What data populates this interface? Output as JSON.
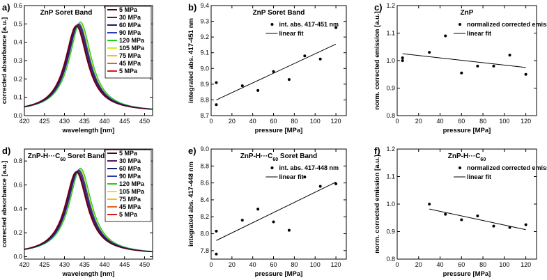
{
  "chart_data": [
    {
      "id": "a",
      "letter": "a)",
      "type": "line",
      "title": "ZnP Soret Band",
      "xlabel": "wavelength [nm]",
      "ylabel": "corrected absorbance [a.u.]",
      "xlim": [
        420,
        452
      ],
      "ylim": [
        0,
        0.6
      ],
      "xticks": [
        420,
        425,
        430,
        435,
        440,
        445,
        450
      ],
      "yticks": [
        0.0,
        0.1,
        0.2,
        0.3,
        0.4,
        0.5,
        0.6
      ],
      "ytick_labels": [
        "0.0",
        "0.1",
        "0.2",
        "0.3",
        "0.4",
        "0.5",
        "0.6"
      ],
      "curve": {
        "baseline": 0.02,
        "width": 3.6,
        "order": "red-first"
      },
      "series": [
        {
          "name": "5 MPa",
          "color": "#4a0024",
          "peak_x": 433.0,
          "peak_y": 0.49
        },
        {
          "name": "30 MPa",
          "color": "#5a1458",
          "peak_x": 433.2,
          "peak_y": 0.492
        },
        {
          "name": "60 MPa",
          "color": "#1a1a6e",
          "peak_x": 433.4,
          "peak_y": 0.496
        },
        {
          "name": "90 MPa",
          "color": "#2a3ab0",
          "peak_x": 433.6,
          "peak_y": 0.5
        },
        {
          "name": "120 MPa",
          "color": "#1fcc1f",
          "peak_x": 434.0,
          "peak_y": 0.51
        },
        {
          "name": "105 MPa",
          "color": "#d6e82a",
          "peak_x": 433.8,
          "peak_y": 0.505
        },
        {
          "name": "75 MPa",
          "color": "#f0c020",
          "peak_x": 433.4,
          "peak_y": 0.5
        },
        {
          "name": "45 MPa",
          "color": "#e86020",
          "peak_x": 433.1,
          "peak_y": 0.495
        },
        {
          "name": "5 MPa",
          "color": "#d41818",
          "peak_x": 432.9,
          "peak_y": 0.49
        }
      ]
    },
    {
      "id": "b",
      "letter": "b)",
      "type": "scatter",
      "title": "ZnP Soret Band",
      "xlabel": "pressure [MPa]",
      "ylabel": "integrated abs. 417-451 nm",
      "xlim": [
        0,
        130
      ],
      "ylim": [
        8.7,
        9.4
      ],
      "xticks": [
        0,
        20,
        40,
        60,
        80,
        100,
        120
      ],
      "yticks": [
        8.7,
        8.8,
        8.9,
        9.0,
        9.1,
        9.2,
        9.3,
        9.4
      ],
      "ytick_labels": [
        "8.7",
        "8.8",
        "8.9",
        "9.0",
        "9.1",
        "9.2",
        "9.3",
        "9.4"
      ],
      "legend": {
        "points": "int. abs. 417-451 nm",
        "fit": "linear fit",
        "position": "top-right"
      },
      "points": [
        [
          5,
          8.77
        ],
        [
          5,
          8.91
        ],
        [
          30,
          8.89
        ],
        [
          45,
          8.86
        ],
        [
          60,
          8.98
        ],
        [
          75,
          8.93
        ],
        [
          90,
          9.08
        ],
        [
          105,
          9.06
        ],
        [
          120,
          9.26
        ]
      ],
      "fit": [
        [
          5,
          8.8
        ],
        [
          120,
          9.155
        ]
      ]
    },
    {
      "id": "c",
      "letter": "c)",
      "type": "scatter",
      "title": "ZnP",
      "xlabel": "pressure [MPa]",
      "ylabel": "norm. corrected emission [a.u.]",
      "xlim": [
        0,
        130
      ],
      "ylim": [
        0.8,
        1.2
      ],
      "xticks": [
        0,
        20,
        40,
        60,
        80,
        100,
        120
      ],
      "yticks": [
        0.8,
        0.9,
        1.0,
        1.1,
        1.2
      ],
      "ytick_labels": [
        "0.8",
        "0.9",
        "1.0",
        "1.1",
        "1.2"
      ],
      "legend": {
        "points": "normalized corrected emission",
        "fit": "linear fit",
        "position": "top-right"
      },
      "points": [
        [
          5,
          1.0
        ],
        [
          5,
          1.01
        ],
        [
          30,
          1.03
        ],
        [
          45,
          1.09
        ],
        [
          60,
          0.955
        ],
        [
          75,
          0.98
        ],
        [
          90,
          0.98
        ],
        [
          105,
          1.02
        ],
        [
          120,
          0.95
        ]
      ],
      "fit": [
        [
          5,
          1.025
        ],
        [
          120,
          0.975
        ]
      ]
    },
    {
      "id": "d",
      "letter": "d)",
      "type": "line",
      "title": "ZnP-H···C",
      "title_sub": "60",
      "title_suffix": " Soret Band",
      "xlabel": "wavelength [nm]",
      "ylabel": "corrected absorbance [a.u.]",
      "xlim": [
        420,
        452
      ],
      "ylim": [
        -0.02,
        0.9
      ],
      "xticks": [
        420,
        425,
        430,
        435,
        440,
        445,
        450
      ],
      "yticks": [
        0.0,
        0.2,
        0.4,
        0.6,
        0.8
      ],
      "ytick_labels": [
        "0.0",
        "0.2",
        "0.4",
        "0.6",
        "0.8"
      ],
      "curve": {
        "baseline": 0.02,
        "width": 3.6,
        "order": "red-first"
      },
      "series": [
        {
          "name": "5 MPa",
          "color": "#4a0024",
          "peak_x": 433.0,
          "peak_y": 0.71
        },
        {
          "name": "30 MPa",
          "color": "#5a1458",
          "peak_x": 433.2,
          "peak_y": 0.712
        },
        {
          "name": "60 MPa",
          "color": "#1a1a6e",
          "peak_x": 433.4,
          "peak_y": 0.718
        },
        {
          "name": "90 MPa",
          "color": "#2a3ab0",
          "peak_x": 433.6,
          "peak_y": 0.725
        },
        {
          "name": "120 MPa",
          "color": "#1fcc1f",
          "peak_x": 434.0,
          "peak_y": 0.74
        },
        {
          "name": "105 MPa",
          "color": "#d6e82a",
          "peak_x": 433.8,
          "peak_y": 0.732
        },
        {
          "name": "75 MPa",
          "color": "#f0c020",
          "peak_x": 433.4,
          "peak_y": 0.722
        },
        {
          "name": "45 MPa",
          "color": "#e86020",
          "peak_x": 433.1,
          "peak_y": 0.715
        },
        {
          "name": "5 MPa",
          "color": "#d41818",
          "peak_x": 432.9,
          "peak_y": 0.71
        }
      ]
    },
    {
      "id": "e",
      "letter": "e)",
      "type": "scatter",
      "title": "ZnP-H···C",
      "title_sub": "60",
      "title_suffix": " Soret Band",
      "xlabel": "pressure [MPa]",
      "ylabel": "integrated abs. 417-448 nm",
      "xlim": [
        0,
        130
      ],
      "ylim": [
        7.7,
        9.0
      ],
      "xticks": [
        0,
        20,
        40,
        60,
        80,
        100,
        120
      ],
      "yticks": [
        7.8,
        8.0,
        8.2,
        8.4,
        8.6,
        8.8,
        9.0
      ],
      "ytick_labels": [
        "7.8",
        "8.0",
        "8.2",
        "8.4",
        "8.6",
        "8.8",
        "9.0"
      ],
      "legend": {
        "points": "int. abs. 417-448 nm",
        "fit": "linear fit",
        "position": "top-right"
      },
      "points": [
        [
          5,
          7.76
        ],
        [
          5,
          8.03
        ],
        [
          30,
          8.16
        ],
        [
          45,
          8.29
        ],
        [
          60,
          8.14
        ],
        [
          75,
          8.04
        ],
        [
          90,
          8.67
        ],
        [
          105,
          8.56
        ],
        [
          120,
          8.59
        ]
      ],
      "fit": [
        [
          5,
          7.92
        ],
        [
          120,
          8.61
        ]
      ]
    },
    {
      "id": "f",
      "letter": "f)",
      "type": "scatter",
      "title": "ZnP-H···C",
      "title_sub": "60",
      "title_suffix": "",
      "xlabel": "pressure [MPa]",
      "ylabel": "norm. corrected emission [a.u.]",
      "xlim": [
        0,
        130
      ],
      "ylim": [
        0.8,
        1.2
      ],
      "xticks": [
        0,
        20,
        40,
        60,
        80,
        100,
        120
      ],
      "yticks": [
        0.8,
        0.9,
        1.0,
        1.1,
        1.2
      ],
      "ytick_labels": [
        "0.8",
        "0.9",
        "1.0",
        "1.1",
        "1.2"
      ],
      "legend": {
        "points": "normalized corrected emission",
        "fit": "linear fit",
        "position": "top-right"
      },
      "points": [
        [
          30,
          1.0
        ],
        [
          45,
          0.963
        ],
        [
          60,
          0.943
        ],
        [
          75,
          0.957
        ],
        [
          90,
          0.92
        ],
        [
          105,
          0.915
        ],
        [
          120,
          0.925
        ]
      ],
      "fit": [
        [
          30,
          0.982
        ],
        [
          120,
          0.907
        ]
      ]
    }
  ]
}
